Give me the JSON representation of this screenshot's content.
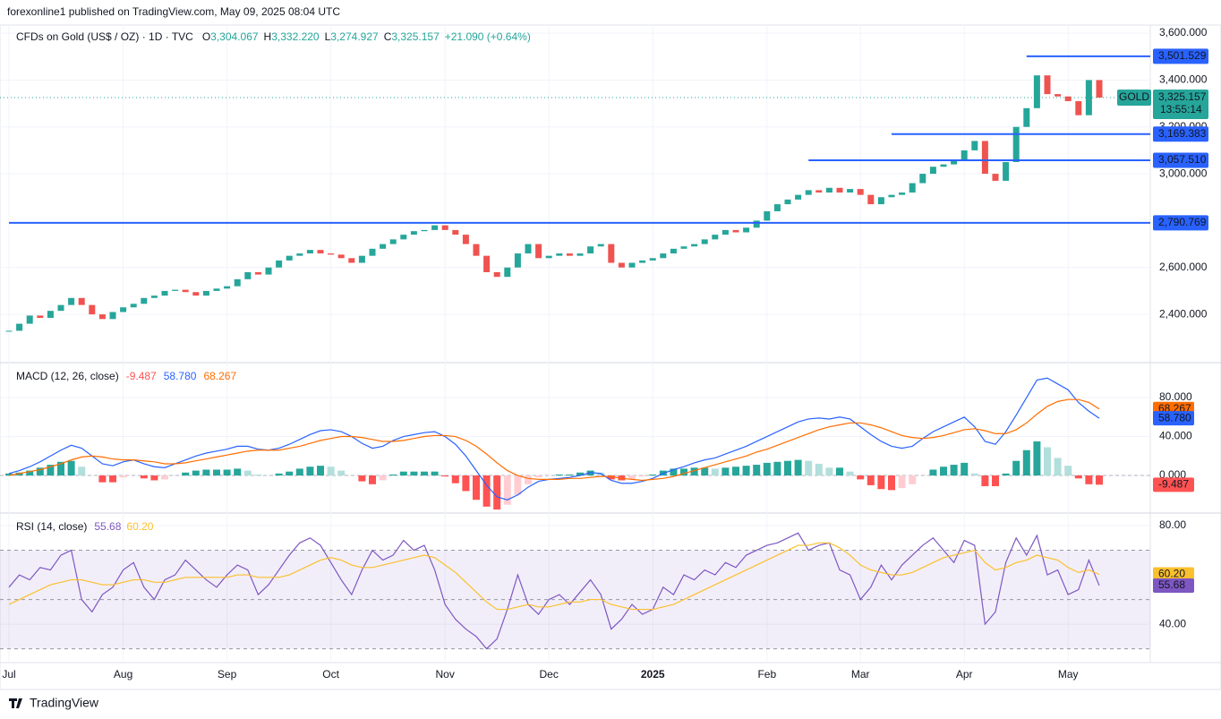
{
  "header": {
    "publisher": "forexonline1 published on TradingView.com, May 09, 2025 08:04 UTC"
  },
  "chart_data": {
    "type": "candlestick",
    "title": "CFDs on Gold (US$ / OZ) · 1D · TVC",
    "ohlc": [
      {
        "key": "O",
        "value": 3304.067,
        "label": "3,304.067"
      },
      {
        "key": "H",
        "value": 3332.22,
        "label": "3,332.220"
      },
      {
        "key": "L",
        "value": 3274.927,
        "label": "3,274.927"
      },
      {
        "key": "C",
        "value": 3325.157,
        "label": "3,325.157"
      }
    ],
    "change": {
      "value": 21.09,
      "label": "+21.090 (+0.64%)"
    },
    "close": [
      2330,
      2360,
      2395,
      2385,
      2415,
      2440,
      2470,
      2440,
      2400,
      2380,
      2410,
      2430,
      2445,
      2470,
      2480,
      2500,
      2505,
      2495,
      2480,
      2500,
      2510,
      2520,
      2550,
      2580,
      2570,
      2600,
      2630,
      2650,
      2660,
      2675,
      2660,
      2655,
      2640,
      2620,
      2650,
      2680,
      2700,
      2720,
      2740,
      2755,
      2760,
      2780,
      2760,
      2740,
      2700,
      2650,
      2580,
      2560,
      2600,
      2660,
      2700,
      2640,
      2650,
      2660,
      2650,
      2660,
      2690,
      2700,
      2620,
      2600,
      2620,
      2630,
      2640,
      2660,
      2680,
      2690,
      2700,
      2720,
      2740,
      2760,
      2750,
      2770,
      2800,
      2840,
      2870,
      2890,
      2910,
      2930,
      2920,
      2940,
      2920,
      2935,
      2910,
      2870,
      2900,
      2910,
      2920,
      2960,
      3000,
      3030,
      3040,
      3060,
      3100,
      3140,
      3000,
      2970,
      3050,
      3200,
      3280,
      3420,
      3340,
      3330,
      3310,
      3250,
      3400,
      3325.157
    ],
    "up_color": "#26a69a",
    "down_color": "#ef5350",
    "ylim": [
      2194,
      3627
    ],
    "yticks": [
      {
        "value": 3600,
        "label": "3,600.000"
      },
      {
        "value": 3400,
        "label": "3,400.000"
      },
      {
        "value": 3200,
        "label": "3,200.000"
      },
      {
        "value": 3000,
        "label": "3,000.000"
      },
      {
        "value": 2600,
        "label": "2,600.000"
      },
      {
        "value": 2400,
        "label": "2,400.000"
      }
    ],
    "xticks": [
      {
        "value": 0,
        "label": "Jul"
      },
      {
        "value": 11,
        "label": "Aug"
      },
      {
        "value": 21,
        "label": "Sep"
      },
      {
        "value": 31,
        "label": "Oct"
      },
      {
        "value": 42,
        "label": "Nov"
      },
      {
        "value": 52,
        "label": "Dec"
      },
      {
        "value": 62,
        "label": "2025",
        "bold": true
      },
      {
        "value": 73,
        "label": "Feb"
      },
      {
        "value": 82,
        "label": "Mar"
      },
      {
        "value": 92,
        "label": "Apr"
      },
      {
        "value": 102,
        "label": "May"
      }
    ],
    "levels": [
      {
        "value": 3501.529,
        "label": "3,501.529",
        "start": 98
      },
      {
        "value": 3169.383,
        "label": "3,169.383",
        "start": 85
      },
      {
        "value": 3057.51,
        "label": "3,057.510",
        "start": 77
      },
      {
        "value": 2790.769,
        "label": "2,790.769",
        "start": 0
      }
    ],
    "level_color": "#2962ff",
    "last": {
      "symbol": "GOLD",
      "value": 3325.157,
      "label": "3,325.157",
      "countdown": "13:55:14"
    }
  },
  "macd": {
    "title": "MACD (12, 26, close)",
    "ylim": [
      -38.6,
      115.9
    ],
    "yticks": [
      {
        "value": 80,
        "label": "80.000"
      },
      {
        "value": 40,
        "label": "40.000"
      },
      {
        "value": 0,
        "label": "0.000"
      }
    ],
    "histogram": {
      "values": [
        2,
        3,
        5,
        8,
        11,
        14,
        15,
        9,
        0,
        -7,
        -7,
        -2,
        0,
        -3,
        -5,
        -4,
        0,
        3,
        5,
        6,
        6,
        6,
        7,
        5,
        1,
        0,
        2,
        4,
        7,
        9,
        10,
        9,
        5,
        0,
        -6,
        -9,
        -5,
        1,
        4,
        4,
        4,
        4,
        -1,
        -8,
        -16,
        -25,
        -32,
        -35,
        -30,
        -20,
        -9,
        -2,
        0,
        1,
        1,
        3,
        5,
        3,
        -4,
        -5,
        -4,
        -1,
        1,
        5,
        7,
        7,
        8,
        8,
        7,
        8,
        9,
        10,
        11,
        13,
        14,
        15,
        16,
        15,
        12,
        8,
        8,
        4,
        -4,
        -10,
        -14,
        -15,
        -13,
        -9,
        0,
        6,
        9,
        11,
        13,
        2,
        -11,
        -11,
        2,
        15,
        26,
        35,
        29,
        18,
        10,
        -3,
        -9,
        -9.487
      ],
      "color": "#ff5252",
      "last_label": "-9.487"
    },
    "macd": {
      "values": [
        2,
        5,
        9,
        14,
        20,
        26,
        31,
        28,
        20,
        12,
        10,
        14,
        16,
        12,
        9,
        8,
        12,
        16,
        20,
        23,
        25,
        27,
        30,
        30,
        27,
        26,
        28,
        32,
        37,
        42,
        46,
        47,
        45,
        40,
        33,
        28,
        30,
        36,
        40,
        42,
        44,
        45,
        40,
        32,
        20,
        5,
        -10,
        -22,
        -25,
        -20,
        -12,
        -6,
        -4,
        -3,
        -2,
        0,
        3,
        2,
        -5,
        -8,
        -8,
        -6,
        -3,
        2,
        6,
        9,
        13,
        16,
        18,
        22,
        26,
        30,
        35,
        40,
        45,
        50,
        55,
        58,
        59,
        58,
        60,
        58,
        50,
        42,
        35,
        30,
        28,
        30,
        38,
        45,
        50,
        55,
        60,
        50,
        35,
        32,
        45,
        62,
        80,
        98,
        100,
        94,
        88,
        75,
        66,
        58.78
      ],
      "color": "#2962ff",
      "last_label": "58.780"
    },
    "signal": {
      "values": [
        0,
        2,
        4,
        6,
        9,
        12,
        16,
        19,
        20,
        19,
        17,
        16,
        16,
        15,
        14,
        12,
        12,
        13,
        15,
        17,
        19,
        21,
        23,
        25,
        26,
        26,
        26,
        28,
        30,
        33,
        36,
        38,
        40,
        40,
        39,
        37,
        35,
        35,
        36,
        38,
        40,
        41,
        41,
        40,
        36,
        30,
        22,
        13,
        5,
        0,
        -3,
        -4,
        -4,
        -4,
        -3,
        -3,
        -2,
        -1,
        -1,
        -3,
        -4,
        -5,
        -4,
        -3,
        -1,
        2,
        5,
        8,
        11,
        14,
        17,
        20,
        24,
        27,
        31,
        35,
        39,
        43,
        47,
        50,
        52,
        54,
        54,
        52,
        49,
        45,
        41,
        39,
        38,
        39,
        41,
        44,
        47,
        48,
        46,
        43,
        43,
        47,
        54,
        63,
        71,
        76,
        78,
        78,
        75,
        68.267
      ],
      "color": "#ff6d00",
      "last_label": "68.267"
    }
  },
  "rsi": {
    "title": "RSI (14, close)",
    "ylim": [
      24.4,
      85.1
    ],
    "yticks": [
      {
        "value": 80,
        "label": "80.00"
      },
      {
        "value": 40,
        "label": "40.00"
      }
    ],
    "bands": [
      70,
      50,
      30
    ],
    "rsi": {
      "values": [
        55,
        60,
        58,
        63,
        62,
        68,
        70,
        50,
        45,
        52,
        55,
        62,
        65,
        55,
        50,
        58,
        60,
        66,
        62,
        58,
        55,
        60,
        64,
        62,
        52,
        56,
        62,
        68,
        73,
        75,
        72,
        65,
        58,
        52,
        62,
        70,
        66,
        68,
        74,
        70,
        72,
        62,
        48,
        42,
        38,
        35,
        30,
        34,
        46,
        60,
        48,
        44,
        50,
        52,
        48,
        53,
        58,
        52,
        38,
        42,
        48,
        44,
        46,
        55,
        52,
        60,
        58,
        62,
        60,
        65,
        63,
        68,
        70,
        72,
        73,
        75,
        77,
        70,
        72,
        73,
        62,
        60,
        50,
        55,
        64,
        58,
        64,
        68,
        72,
        75,
        70,
        65,
        74,
        72,
        40,
        45,
        65,
        75,
        68,
        76,
        60,
        62,
        52,
        54,
        66,
        55.68
      ],
      "color": "#7e57c2",
      "last_label": "55.68"
    },
    "ma": {
      "values": [
        48,
        50,
        52,
        54,
        56,
        57,
        58,
        58,
        57,
        56,
        56,
        57,
        58,
        58,
        57,
        57,
        58,
        59,
        59,
        59,
        59,
        59,
        60,
        60,
        59,
        59,
        59,
        60,
        62,
        64,
        66,
        67,
        66,
        64,
        63,
        63,
        64,
        65,
        66,
        67,
        68,
        67,
        64,
        61,
        57,
        53,
        49,
        46,
        46,
        47,
        48,
        47,
        47,
        48,
        49,
        49,
        50,
        50,
        48,
        47,
        46,
        46,
        46,
        47,
        48,
        50,
        52,
        54,
        56,
        58,
        60,
        62,
        64,
        66,
        68,
        70,
        72,
        72,
        73,
        73,
        71,
        68,
        64,
        62,
        61,
        60,
        60,
        61,
        63,
        65,
        67,
        68,
        69,
        70,
        65,
        62,
        63,
        65,
        66,
        68,
        67,
        66,
        63,
        61,
        62,
        60.2
      ],
      "color": "#fbc02d",
      "last_label": "60.20"
    }
  },
  "footer": {
    "brand": "TradingView"
  }
}
